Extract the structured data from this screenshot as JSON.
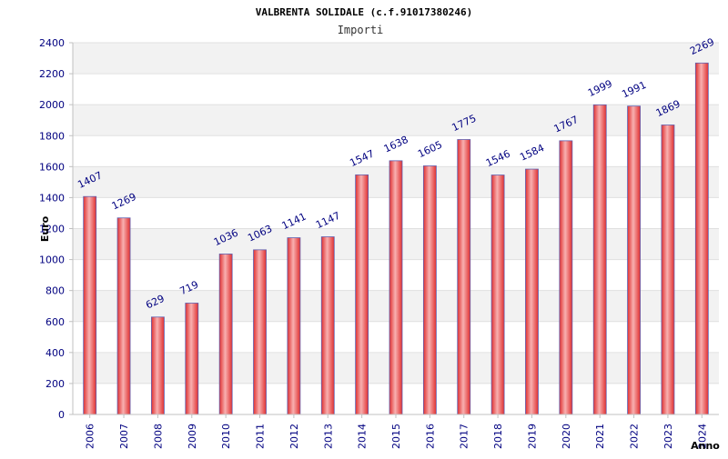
{
  "chart_data": {
    "type": "bar",
    "title": "VALBRENTA SOLIDALE (c.f.91017380246)",
    "subtitle": "Importi",
    "xlabel": "Anno",
    "ylabel": "Euro",
    "categories": [
      "2006",
      "2007",
      "2008",
      "2009",
      "2010",
      "2011",
      "2012",
      "2013",
      "2014",
      "2015",
      "2016",
      "2017",
      "2018",
      "2019",
      "2020",
      "2021",
      "2022",
      "2023",
      "2024"
    ],
    "series": [
      {
        "values": [
          1407,
          1269,
          629,
          719,
          1036,
          1063,
          1141,
          1147,
          1547,
          1638,
          1605,
          1775,
          1546,
          1584,
          1767,
          1999,
          1991,
          1869,
          2269
        ]
      }
    ],
    "ylim": [
      0,
      2400
    ],
    "yticks": [
      0,
      200,
      400,
      600,
      800,
      1000,
      1200,
      1400,
      1600,
      1800,
      2000,
      2200,
      2400
    ],
    "grid": true,
    "data_labels": true,
    "colors": {
      "bar": "#e03030",
      "bar_highlight": "#f8b0b0",
      "bar_edge": "#6060b0",
      "band_alt": "#f2f2f2",
      "tick_text": "#000080"
    }
  }
}
